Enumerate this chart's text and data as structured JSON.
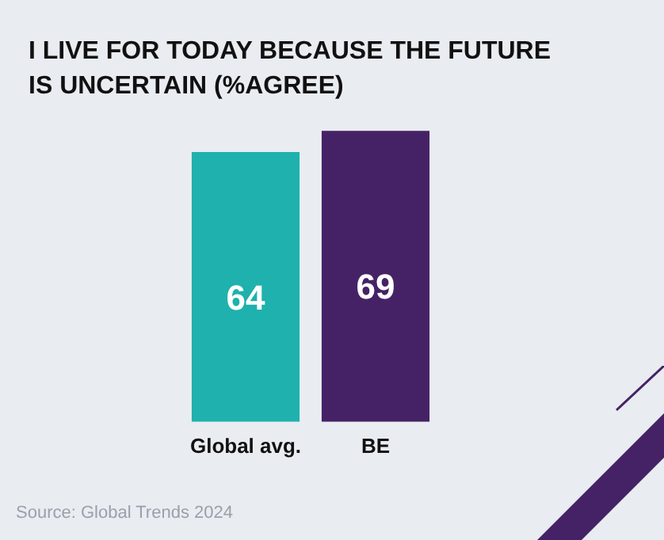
{
  "chart_data": {
    "type": "bar",
    "title": "I LIVE FOR TODAY BECAUSE THE FUTURE IS UNCERTAIN (%AGREE)",
    "categories": [
      "Global avg.",
      "BE"
    ],
    "values": [
      64,
      69
    ],
    "colors": [
      "#1fb1ad",
      "#452266"
    ],
    "data_labels": true,
    "grid": false,
    "legend": false,
    "annotations": [
      "Source: Global Trends 2024"
    ]
  }
}
